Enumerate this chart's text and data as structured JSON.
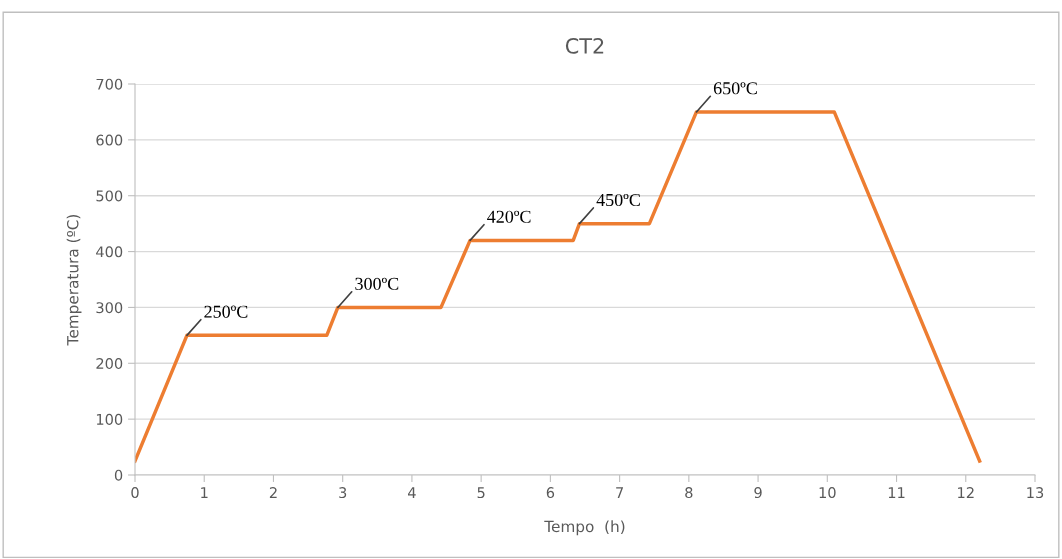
{
  "chart_data": {
    "type": "line",
    "title": "CT2",
    "xlabel": "Tempo  (h)",
    "ylabel": "Temperatura (ºC)",
    "x": [
      0,
      0.75,
      2.77,
      2.93,
      4.42,
      4.84,
      6.33,
      6.42,
      7.43,
      8.11,
      10.1,
      12.2
    ],
    "series": [
      {
        "color": "#ed7d31",
        "values": [
          25,
          250,
          250,
          300,
          300,
          420,
          420,
          450,
          450,
          650,
          650,
          25
        ]
      }
    ],
    "xlim": [
      0,
      13
    ],
    "xticks": [
      0,
      1,
      2,
      3,
      4,
      5,
      6,
      7,
      8,
      9,
      10,
      11,
      12,
      13
    ],
    "ylim": [
      0,
      700
    ],
    "yticks": [
      0,
      100,
      200,
      300,
      400,
      500,
      600,
      700
    ],
    "grid": "y",
    "legend": false,
    "marker": "none",
    "line_style": "solid",
    "annotations": [
      {
        "text": "250ºC",
        "x": 0.75,
        "y": 250
      },
      {
        "text": "300ºC",
        "x": 2.93,
        "y": 300
      },
      {
        "text": "420ºC",
        "x": 4.84,
        "y": 420
      },
      {
        "text": "450ºC",
        "x": 6.42,
        "y": 450
      },
      {
        "text": "650ºC",
        "x": 8.11,
        "y": 650
      }
    ]
  }
}
